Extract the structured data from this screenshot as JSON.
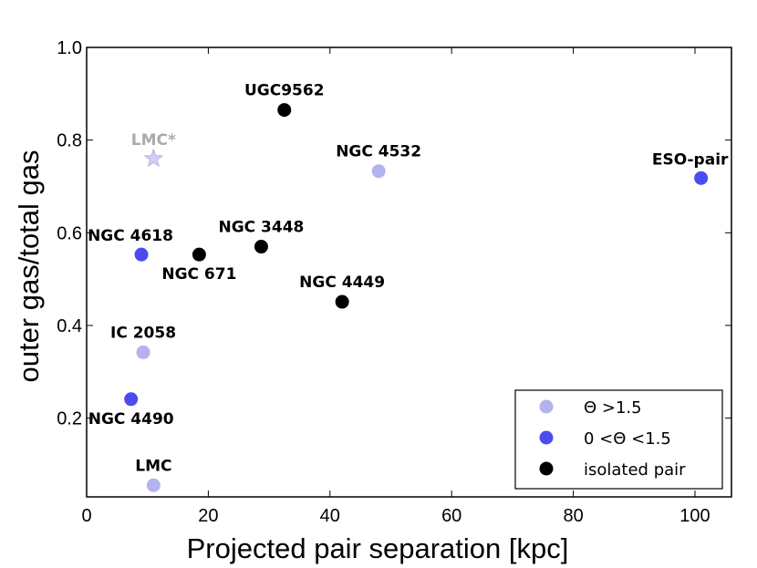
{
  "chart_data": {
    "type": "scatter",
    "xlabel": "Projected pair separation [kpc]",
    "ylabel": "outer gas/total gas",
    "xlim": [
      0,
      106
    ],
    "ylim": [
      0.03,
      1.0
    ],
    "xticks": [
      0,
      20,
      40,
      60,
      80,
      100
    ],
    "yticks": [
      0.2,
      0.4,
      0.6,
      0.8,
      1.0
    ],
    "ytick_labels": [
      "0.2",
      "0.4",
      "0.6",
      "0.8",
      "1.0"
    ],
    "colors": {
      "light": "#b3b3ee",
      "mid": "#4c4cee",
      "dark": "#000000",
      "star_fill": "#cfcff2",
      "star_label": "#aaaaaa"
    },
    "series": [
      {
        "name": "Θ >1.5",
        "legend": {
          "prefix": "Θ",
          "op": " >",
          "value": "1.5"
        },
        "color_key": "light",
        "points": [
          {
            "name": "NGC 4532",
            "x": 48,
            "y": 0.733,
            "label_pos": "above"
          },
          {
            "name": "IC 2058",
            "x": 9.3,
            "y": 0.342,
            "label_pos": "above"
          },
          {
            "name": "LMC",
            "x": 11,
            "y": 0.055,
            "label_pos": "above"
          }
        ]
      },
      {
        "name": "0 <Θ <1.5",
        "legend": {
          "prefix": "0",
          "mid": " <Θ <",
          "value": "1.5"
        },
        "color_key": "mid",
        "points": [
          {
            "name": "ESO-pair",
            "x": 101,
            "y": 0.718,
            "label_pos": "above-left"
          },
          {
            "name": "NGC 4618",
            "x": 9,
            "y": 0.553,
            "label_pos": "above-left"
          },
          {
            "name": "NGC 4490",
            "x": 7.3,
            "y": 0.241,
            "label_pos": "below"
          }
        ]
      },
      {
        "name": "isolated pair",
        "color_key": "dark",
        "points": [
          {
            "name": "UGC9562",
            "x": 32.5,
            "y": 0.865,
            "label_pos": "above"
          },
          {
            "name": "NGC 3448",
            "x": 28.7,
            "y": 0.57,
            "label_pos": "above"
          },
          {
            "name": "NGC 671",
            "x": 18.5,
            "y": 0.553,
            "label_pos": "below"
          },
          {
            "name": "NGC 4449",
            "x": 42,
            "y": 0.451,
            "label_pos": "above"
          }
        ]
      }
    ],
    "annotations": [
      {
        "name": "LMC*",
        "x": 11,
        "y": 0.76,
        "marker": "star"
      }
    ]
  }
}
